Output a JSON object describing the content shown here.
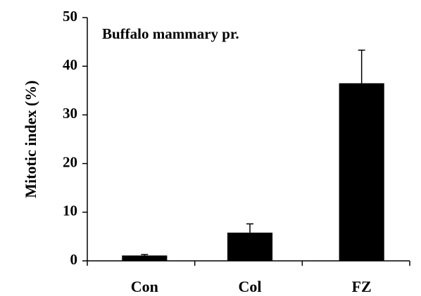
{
  "chart_data": {
    "type": "bar",
    "title": "Buffalo mammary pr.",
    "y_label": "Mitotic index (%)",
    "categories": [
      "Con",
      "Col",
      "FZ"
    ],
    "values": [
      1.1,
      5.8,
      36.5
    ],
    "errors": [
      0.2,
      1.8,
      6.8
    ],
    "color": "#000000",
    "ylim": [
      0,
      50
    ],
    "yticks": [
      0,
      10,
      20,
      30,
      40,
      50
    ],
    "grid": false
  }
}
